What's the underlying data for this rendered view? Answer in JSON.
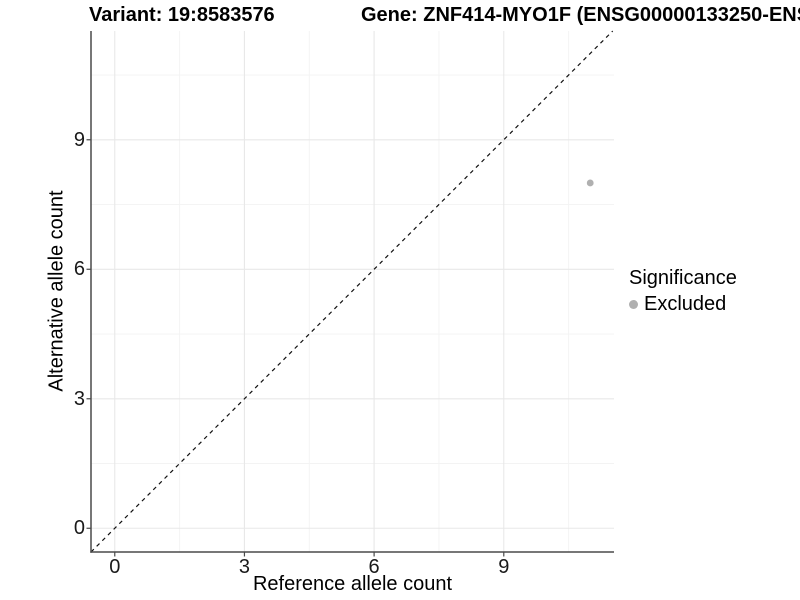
{
  "chart_data": {
    "type": "scatter",
    "title_left": "Variant: 19:8583576",
    "title_right": "Gene: ZNF414-MYO1F (ENSG00000133250-ENS",
    "xlabel": "Reference allele count",
    "ylabel": "Alternative allele count",
    "xlim": [
      -0.55,
      11.55
    ],
    "ylim": [
      -0.55,
      11.52
    ],
    "x_ticks": [
      0,
      3,
      6,
      9
    ],
    "y_ticks": [
      0,
      3,
      6,
      9
    ],
    "x_minor_ticks": [
      1.5,
      4.5,
      7.5,
      10.5
    ],
    "y_minor_ticks": [
      1.5,
      4.5,
      7.5,
      10.5
    ],
    "grid": "major+minor",
    "identity_line": {
      "style": "dashed",
      "equation": "y = x"
    },
    "legend_position": "right",
    "legend": {
      "title": "Significance",
      "items": [
        {
          "label": "Excluded",
          "color": "#b0b0b0"
        }
      ]
    },
    "series": [
      {
        "name": "Excluded",
        "color": "#b0b0b0",
        "points": [
          [
            11,
            8
          ]
        ]
      }
    ]
  },
  "colors": {
    "background": "#ffffff",
    "text": "#000000",
    "axis_line": "#4a4a4a",
    "grid_major": "#e8e8e8",
    "grid_minor": "#f3f3f3",
    "dashed_line": "#111111",
    "excluded_point": "#b0b0b0"
  }
}
